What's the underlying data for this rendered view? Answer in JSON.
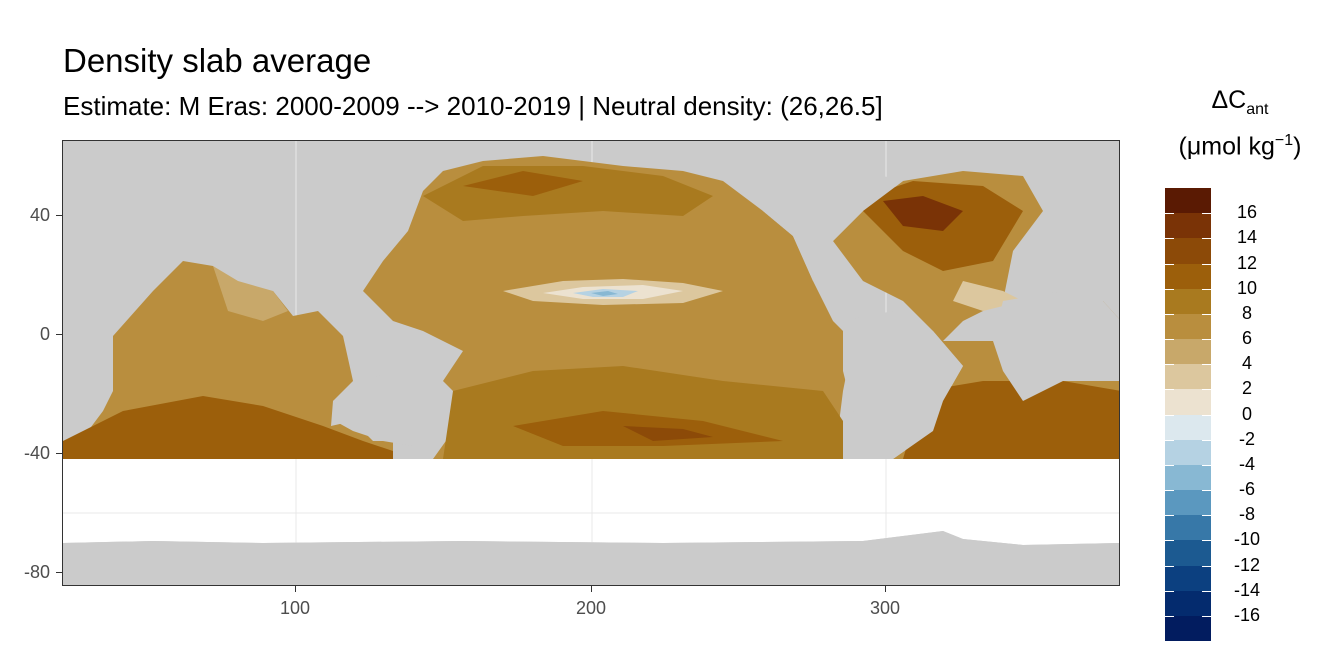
{
  "title": "Density slab average",
  "subtitle": "Estimate: M Eras: 2000-2009 --> 2010-2019 | Neutral density: (26,26.5]",
  "legend": {
    "title_main": "ΔC",
    "title_sub": "ant",
    "unit_open": "(μmol kg",
    "unit_exp": "−1",
    "unit_close": ")",
    "labels": [
      "16",
      "14",
      "12",
      "10",
      "8",
      "6",
      "4",
      "2",
      "0",
      "-2",
      "-4",
      "-6",
      "-8",
      "-10",
      "-12",
      "-14",
      "-16"
    ],
    "colors": [
      "#5a1a03",
      "#7a3306",
      "#8c4a08",
      "#9c5f0b",
      "#a97a1f",
      "#b98e3e",
      "#c8a86a",
      "#dcc79e",
      "#ece2d0",
      "#dce8ee",
      "#b5d2e3",
      "#88b8d3",
      "#5b98bf",
      "#3778a8",
      "#1c5a91",
      "#0c4080",
      "#042b6e",
      "#021c5f"
    ]
  },
  "axes": {
    "x_ticks": [
      "100",
      "200",
      "300"
    ],
    "y_ticks": [
      "40",
      "0",
      "-40",
      "-80"
    ]
  },
  "chart_data": {
    "type": "heatmap",
    "title": "Density slab average",
    "subtitle": "Estimate: M Eras: 2000-2009 --> 2010-2019 | Neutral density: (26,26.5]",
    "xlabel": "",
    "ylabel": "",
    "xlim": [
      20,
      380
    ],
    "ylim": [
      -85,
      65
    ],
    "x_ticks": [
      100,
      200,
      300
    ],
    "y_ticks": [
      40,
      0,
      -40,
      -80
    ],
    "colorbar": {
      "title": "ΔCant (μmol kg−1)",
      "range": [
        -17,
        17
      ],
      "breaks": [
        16,
        14,
        12,
        10,
        8,
        6,
        4,
        2,
        0,
        -2,
        -4,
        -6,
        -8,
        -10,
        -12,
        -14,
        -16
      ]
    },
    "background_land_color": "#cbcbcb",
    "no_data_color": "#ffffff",
    "notes": "Ocean field mostly positive (4–14 µmol/kg) with maxima in North Atlantic subpolar gyre, South Atlantic, South Indian and South Pacific near 40S; near-zero/negative (about -2 to -4) band in the eastern tropical North Pacific near 200E,15N. No data south of about 42S."
  }
}
